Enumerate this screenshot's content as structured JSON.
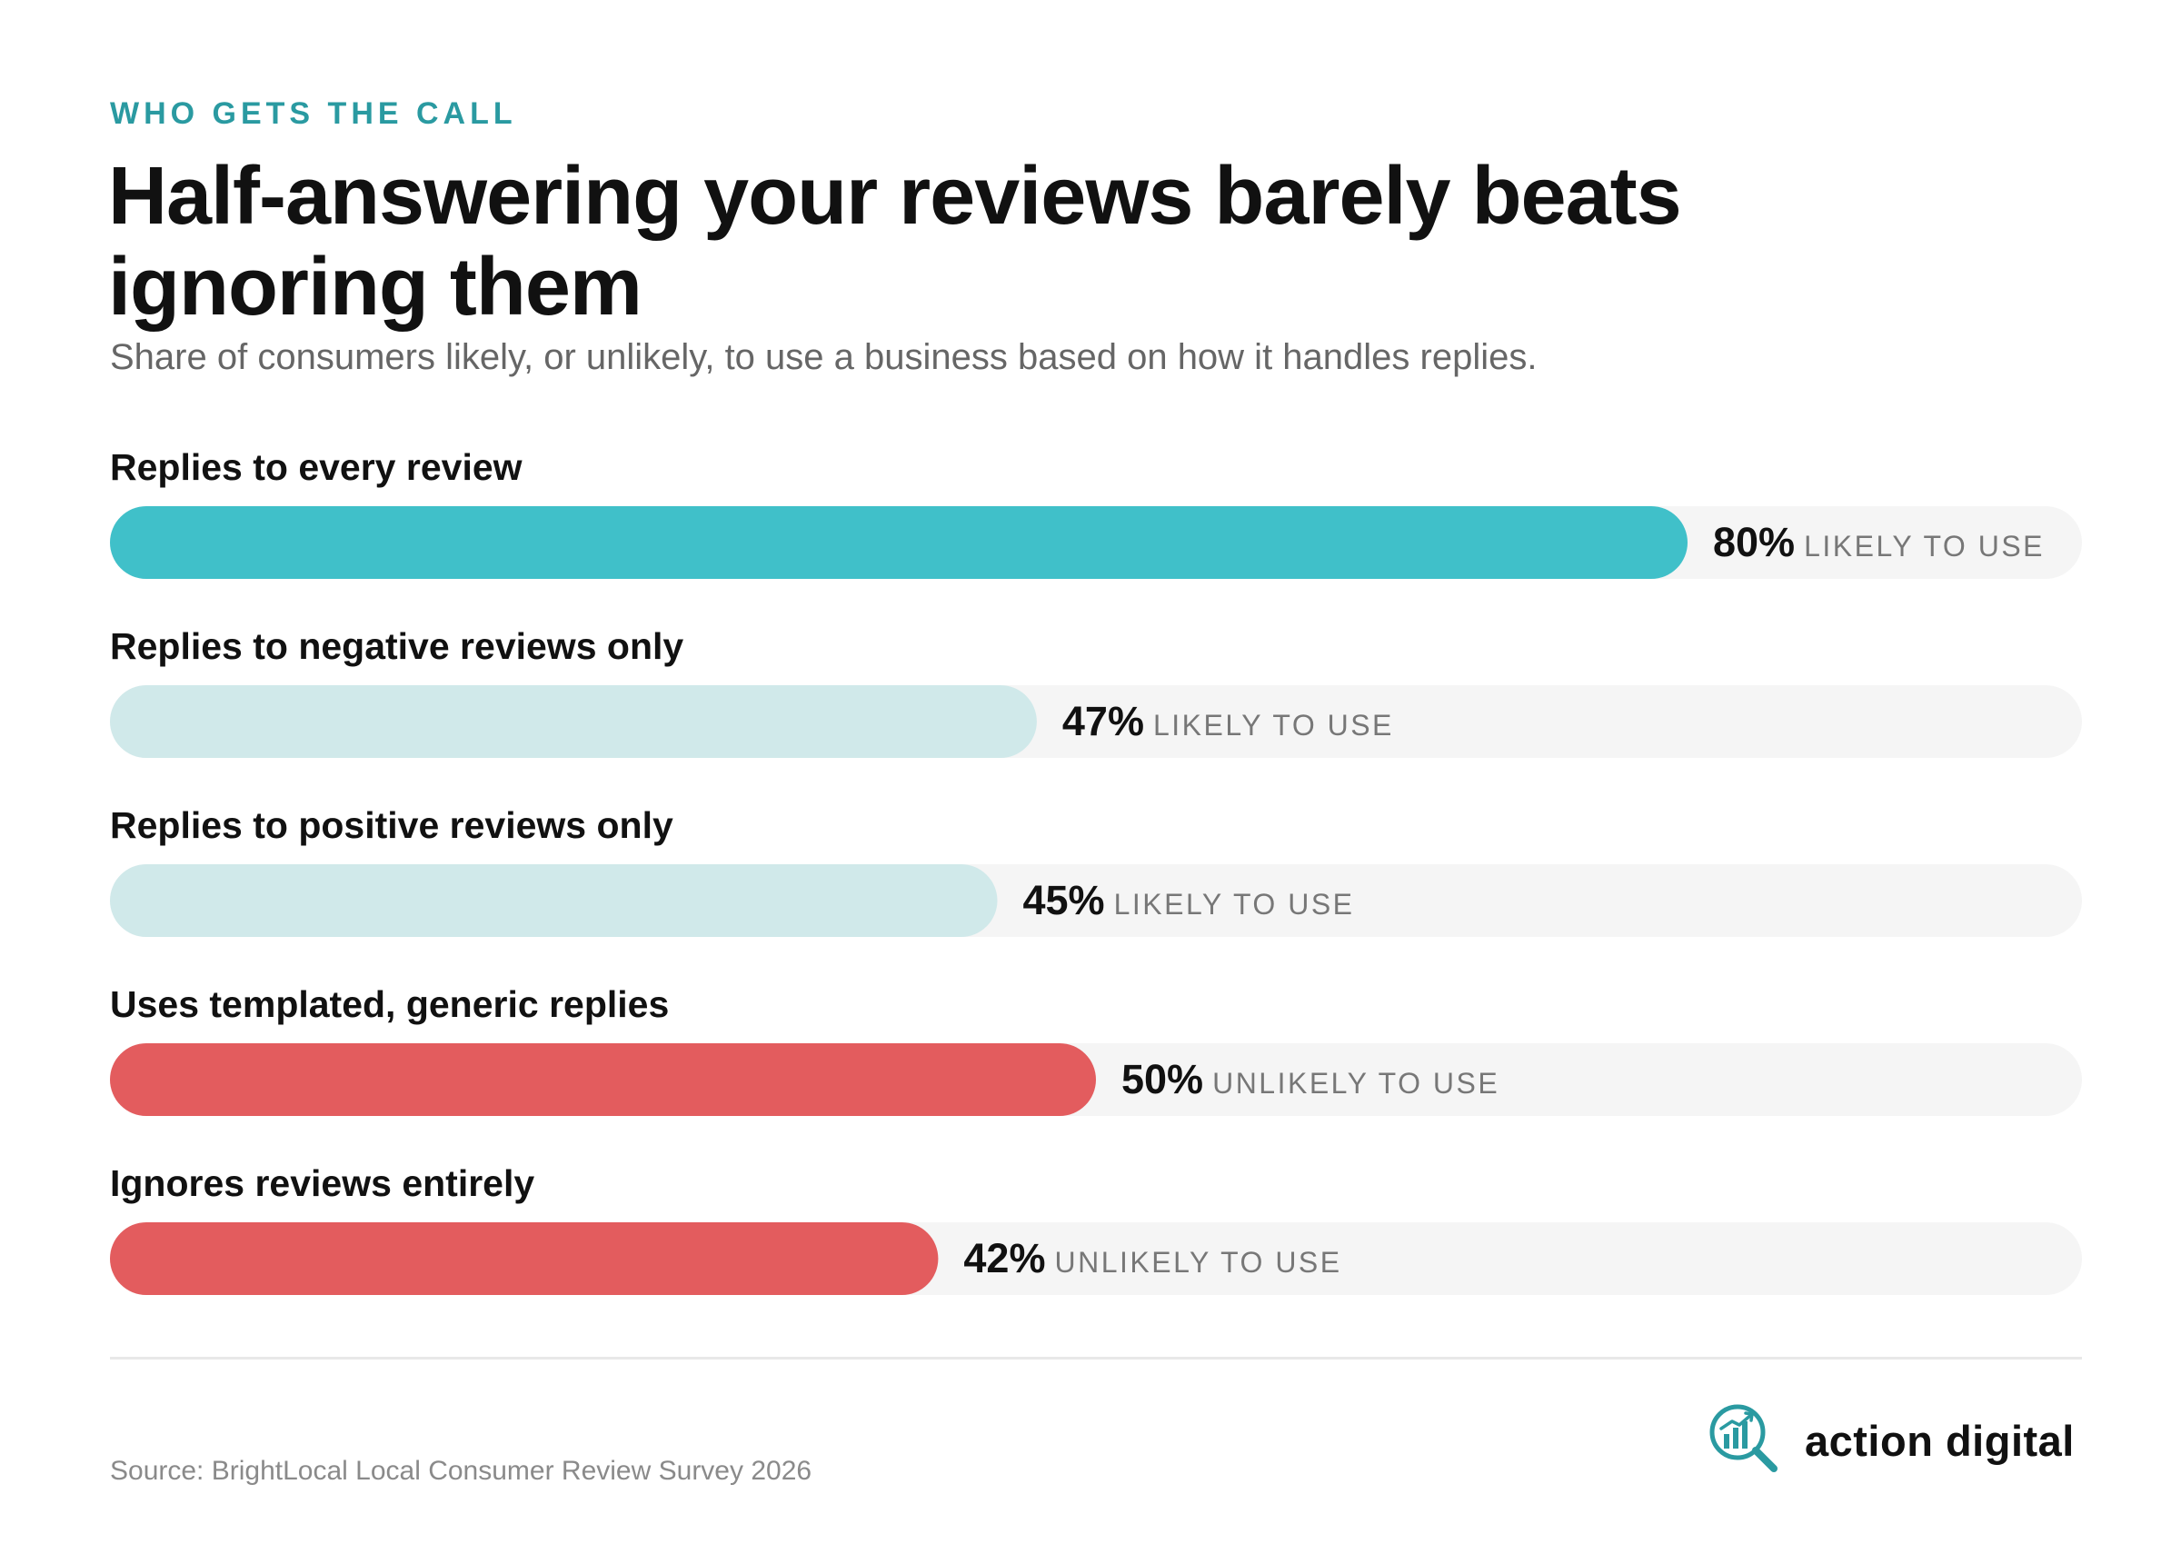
{
  "eyebrow": "WHO GETS THE CALL",
  "title": "Half-answering your reviews barely beats ignoring them",
  "subtitle": "Share of consumers likely, or unlikely, to use a business based on how it handles replies.",
  "source": "Source: BrightLocal Local Consumer Review Survey 2026",
  "brand": {
    "name": "action digital",
    "logo_icon": "chart-magnifier-icon"
  },
  "colors": {
    "accent": "#2a9aa1",
    "likely_strong": "#40c0c9",
    "likely_light": "#d0e9ea",
    "unlikely": "#e35c5e",
    "track": "#f5f5f5"
  },
  "chart_data": {
    "type": "bar",
    "orientation": "horizontal",
    "xlim": [
      0,
      100
    ],
    "unit": "%",
    "categories": [
      "Replies to every review",
      "Replies to negative reviews only",
      "Replies to positive reviews only",
      "Uses templated, generic replies",
      "Ignores reviews entirely"
    ],
    "values": [
      80,
      47,
      45,
      50,
      42
    ],
    "value_labels": [
      "80%",
      "47%",
      "45%",
      "50%",
      "42%"
    ],
    "label_suffixes": [
      "LIKELY TO USE",
      "LIKELY TO USE",
      "LIKELY TO USE",
      "UNLIKELY TO USE",
      "UNLIKELY TO USE"
    ],
    "bar_colors": [
      "#40c0c9",
      "#d0e9ea",
      "#d0e9ea",
      "#e35c5e",
      "#e35c5e"
    ]
  }
}
